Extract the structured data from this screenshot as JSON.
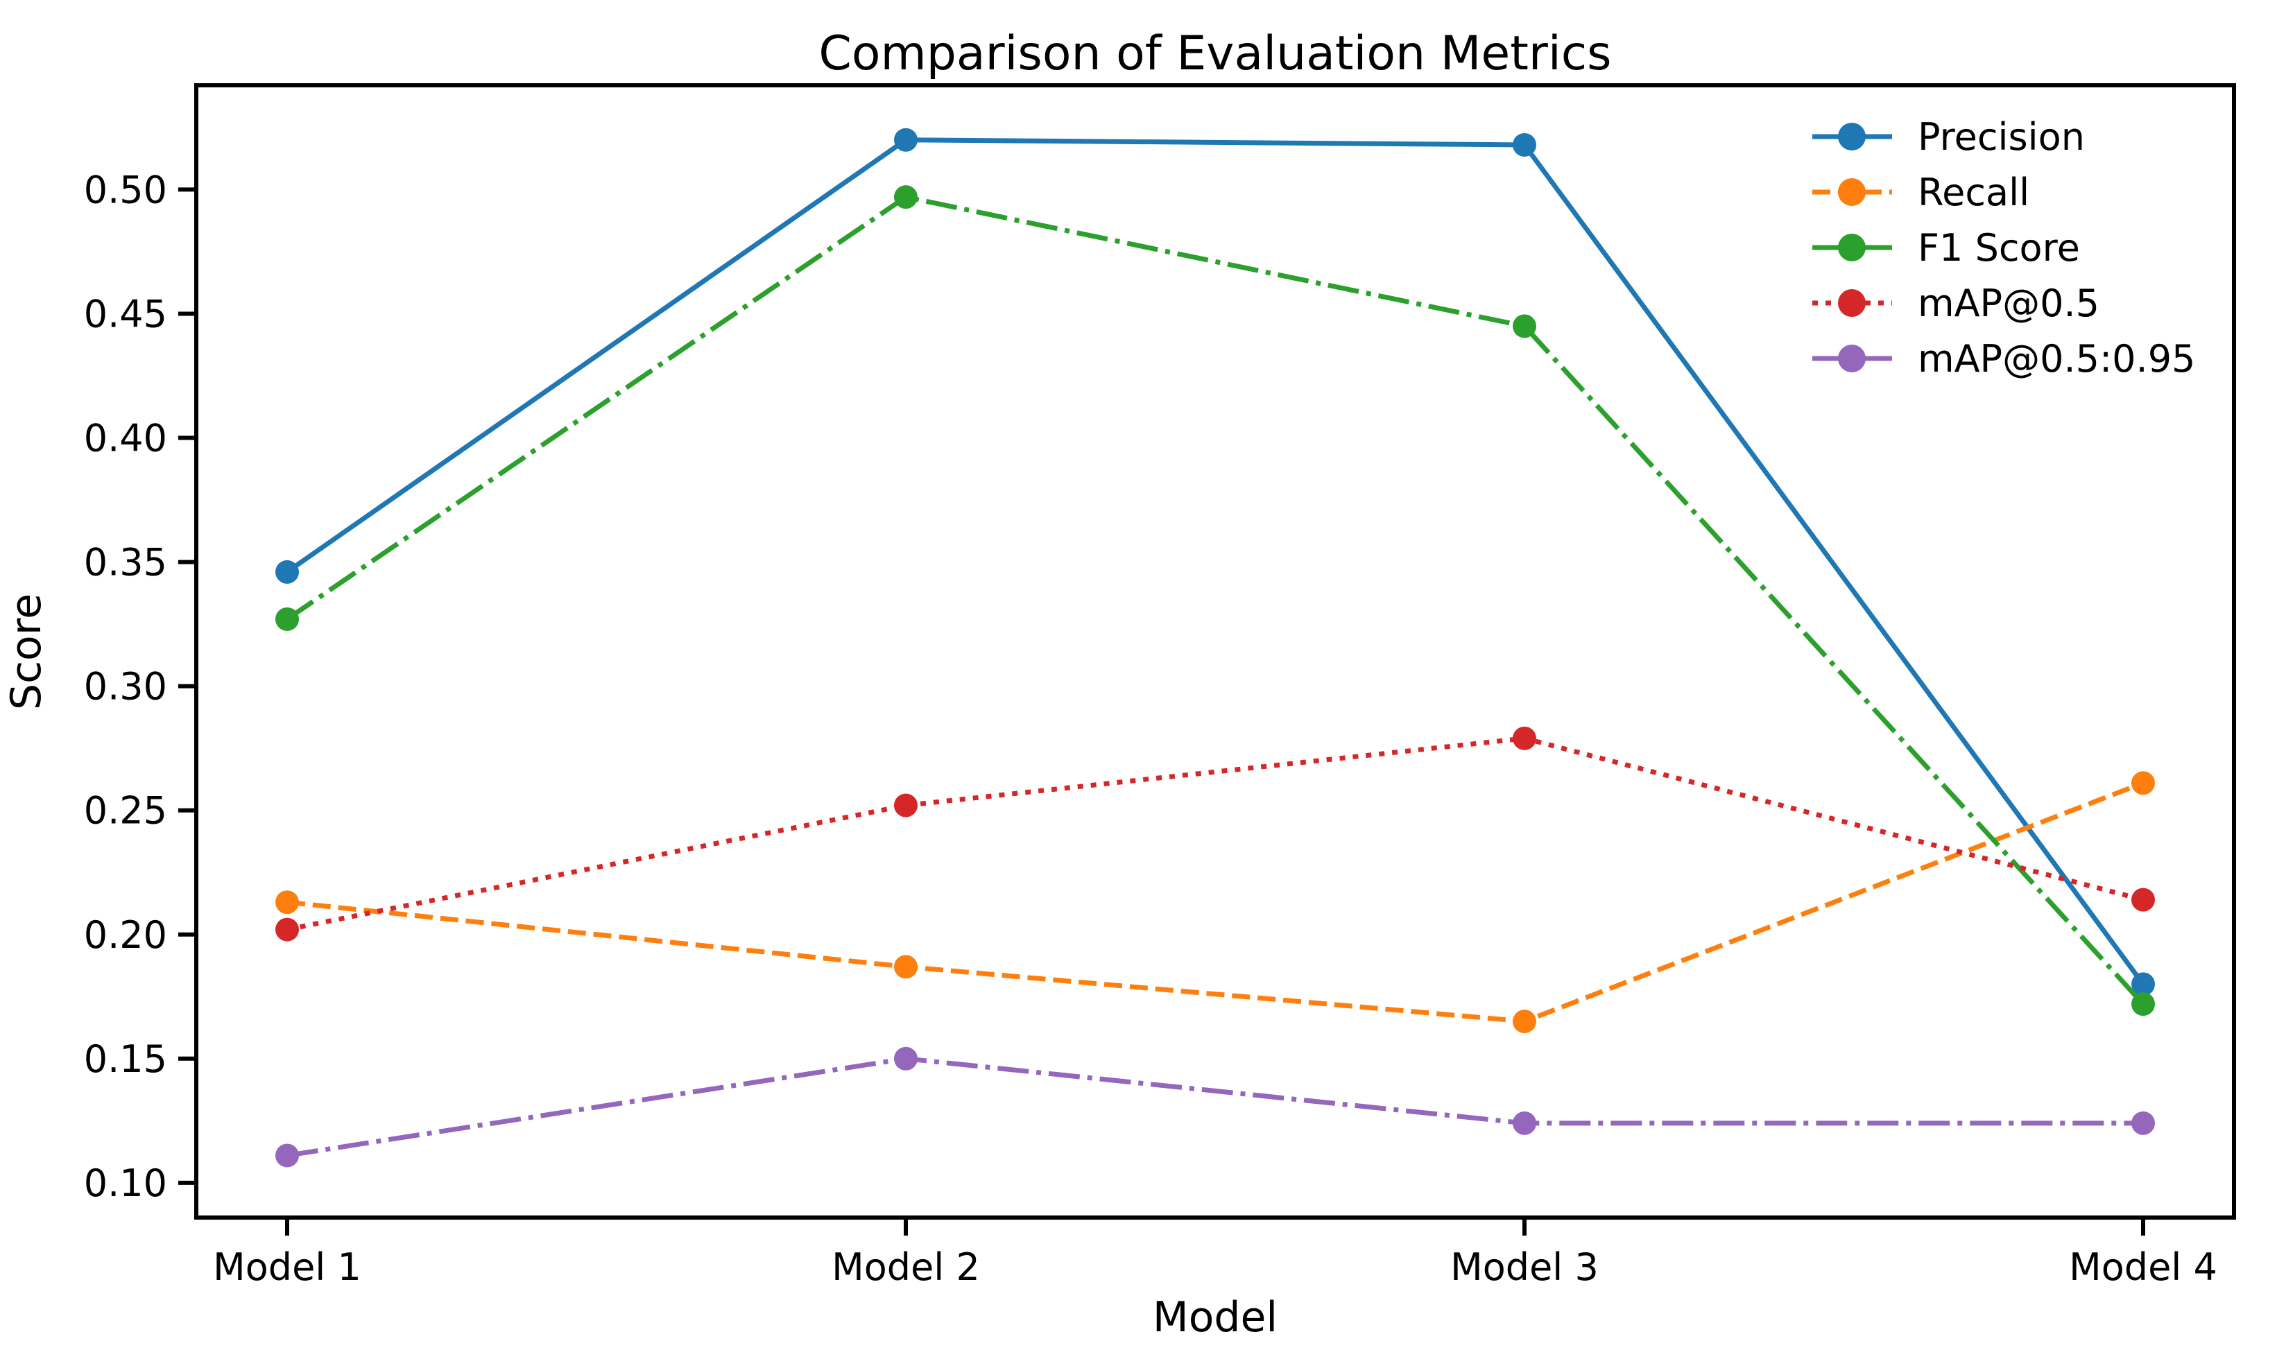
{
  "chart_data": {
    "type": "line",
    "title": "Comparison of Evaluation Metrics",
    "xlabel": "Model",
    "ylabel": "Score",
    "categories": [
      "Model 1",
      "Model 2",
      "Model 3",
      "Model 4"
    ],
    "series": [
      {
        "name": "Precision",
        "color": "#1f77b4",
        "line_style": "solid",
        "marker": "circle",
        "values": [
          0.346,
          0.52,
          0.518,
          0.18
        ]
      },
      {
        "name": "Recall",
        "color": "#ff7f0e",
        "line_style": "dashed",
        "marker": "circle",
        "values": [
          0.213,
          0.187,
          0.165,
          0.261
        ]
      },
      {
        "name": "F1 Score",
        "color": "#2ca02c",
        "line_style": "dashdot",
        "marker": "circle",
        "values": [
          0.327,
          0.497,
          0.445,
          0.172
        ]
      },
      {
        "name": "mAP@0.5",
        "color": "#d62728",
        "line_style": "dotted",
        "marker": "circle",
        "values": [
          0.202,
          0.252,
          0.279,
          0.214
        ]
      },
      {
        "name": "mAP@0.5:0.95",
        "color": "#9467bd",
        "line_style": "dashdot",
        "marker": "circle",
        "values": [
          0.111,
          0.15,
          0.124,
          0.124
        ]
      }
    ],
    "yticks": [
      0.1,
      0.15,
      0.2,
      0.25,
      0.3,
      0.35,
      0.4,
      0.45,
      0.5
    ],
    "ytick_labels": [
      "0.10",
      "0.15",
      "0.20",
      "0.25",
      "0.30",
      "0.35",
      "0.40",
      "0.45",
      "0.50"
    ],
    "ylim": [
      0.086,
      0.542
    ],
    "legend_position": "upper right",
    "grid": false,
    "axis_color": "#000000",
    "background_color": "#ffffff"
  }
}
